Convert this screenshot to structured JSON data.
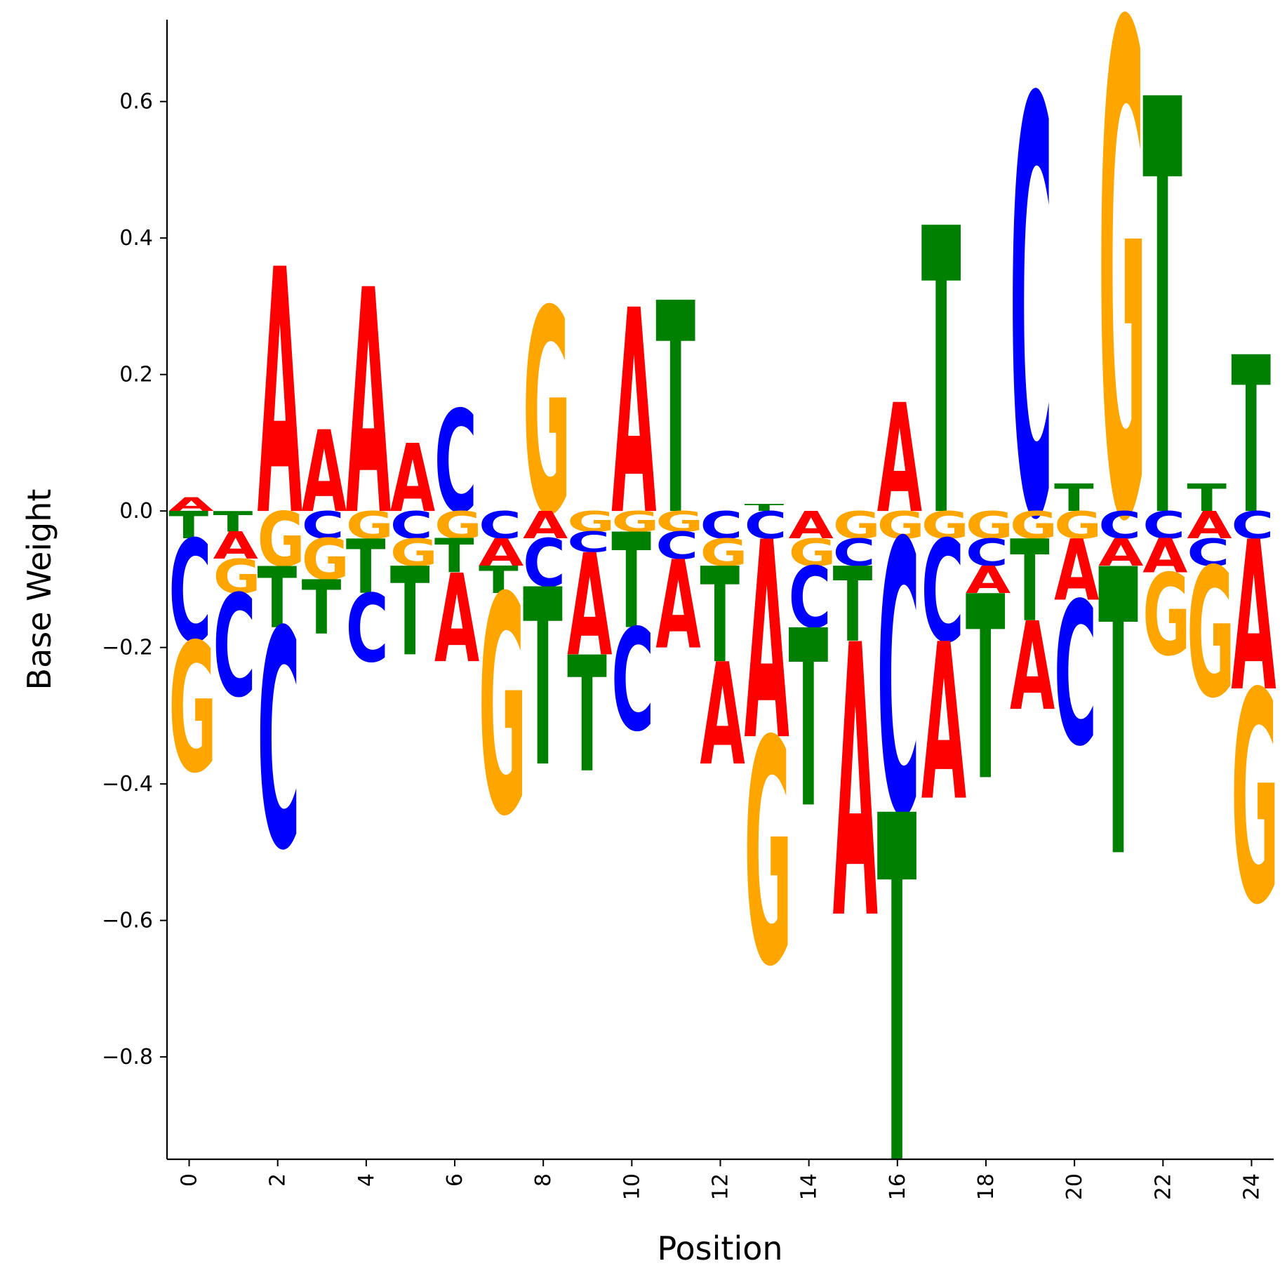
{
  "chart_data": {
    "type": "sequence-logo",
    "xlabel": "Position",
    "ylabel": "Base Weight",
    "xlim": [
      -0.5,
      24.5
    ],
    "ylim": [
      -0.95,
      0.72
    ],
    "x_ticks": [
      "0",
      "2",
      "4",
      "6",
      "8",
      "10",
      "12",
      "14",
      "16",
      "18",
      "20",
      "22",
      "24"
    ],
    "y_ticks": [
      "0.6",
      "0.4",
      "0.2",
      "0.0",
      "−0.2",
      "−0.4",
      "−0.6",
      "−0.8"
    ],
    "y_tick_values": [
      0.6,
      0.4,
      0.2,
      0.0,
      -0.2,
      -0.4,
      -0.6,
      -0.8
    ],
    "colors": {
      "A": "#ff0000",
      "C": "#0000ff",
      "G": "#ffa500",
      "T": "#008000"
    },
    "positions": [
      {
        "pos": 0,
        "weights": {
          "A": 0.02,
          "T": -0.04,
          "C": -0.15,
          "G": -0.19
        }
      },
      {
        "pos": 1,
        "weights": {
          "T": -0.03,
          "G": -0.05,
          "A": -0.04,
          "C": -0.15
        }
      },
      {
        "pos": 2,
        "weights": {
          "A": 0.36,
          "G": -0.08,
          "T": -0.09,
          "C": -0.32
        }
      },
      {
        "pos": 3,
        "weights": {
          "A": 0.12,
          "C": -0.04,
          "G": -0.06,
          "T": -0.08
        }
      },
      {
        "pos": 4,
        "weights": {
          "A": 0.33,
          "G": -0.04,
          "T": -0.08,
          "C": -0.1
        }
      },
      {
        "pos": 5,
        "weights": {
          "A": 0.1,
          "C": -0.04,
          "G": -0.04,
          "T": -0.13
        }
      },
      {
        "pos": 6,
        "weights": {
          "C": 0.15,
          "G": -0.04,
          "T": -0.05,
          "A": -0.13
        }
      },
      {
        "pos": 7,
        "weights": {
          "C": -0.04,
          "A": -0.04,
          "T": -0.04,
          "G": -0.32
        }
      },
      {
        "pos": 8,
        "weights": {
          "G": 0.3,
          "A": -0.04,
          "C": -0.07,
          "T": -0.26
        }
      },
      {
        "pos": 9,
        "weights": {
          "G": -0.03,
          "C": -0.03,
          "A": -0.15,
          "T": -0.17
        }
      },
      {
        "pos": 10,
        "weights": {
          "A": 0.3,
          "G": -0.03,
          "C": -0.15,
          "T": -0.14
        }
      },
      {
        "pos": 11,
        "weights": {
          "T": 0.31,
          "G": -0.03,
          "C": -0.04,
          "A": -0.13
        }
      },
      {
        "pos": 12,
        "weights": {
          "C": -0.04,
          "G": -0.04,
          "T": -0.14,
          "A": -0.15
        }
      },
      {
        "pos": 13,
        "weights": {
          "T": 0.01,
          "C": -0.04,
          "A": -0.29,
          "G": -0.33
        }
      },
      {
        "pos": 14,
        "weights": {
          "A": -0.04,
          "G": -0.04,
          "C": -0.09,
          "T": -0.26
        }
      },
      {
        "pos": 15,
        "weights": {
          "G": -0.04,
          "C": -0.04,
          "T": -0.11,
          "A": -0.4
        }
      },
      {
        "pos": 16,
        "weights": {
          "A": 0.16,
          "G": -0.04,
          "C": -0.4,
          "T": -0.51
        }
      },
      {
        "pos": 17,
        "weights": {
          "T": 0.42,
          "G": -0.04,
          "C": -0.15,
          "A": -0.23
        }
      },
      {
        "pos": 18,
        "weights": {
          "G": -0.04,
          "C": -0.04,
          "A": -0.04,
          "T": -0.27
        }
      },
      {
        "pos": 19,
        "weights": {
          "C": 0.61,
          "G": -0.04,
          "A": -0.13,
          "T": -0.12
        }
      },
      {
        "pos": 20,
        "weights": {
          "T": 0.04,
          "G": -0.04,
          "A": -0.09,
          "C": -0.21
        }
      },
      {
        "pos": 21,
        "weights": {
          "G": 0.72,
          "C": -0.04,
          "A": -0.04,
          "T": -0.42
        }
      },
      {
        "pos": 22,
        "weights": {
          "T": 0.61,
          "C": -0.04,
          "A": -0.05,
          "G": -0.12
        }
      },
      {
        "pos": 23,
        "weights": {
          "T": 0.04,
          "A": -0.04,
          "C": -0.04,
          "G": -0.19
        }
      },
      {
        "pos": 24,
        "weights": {
          "T": 0.23,
          "C": -0.04,
          "A": -0.22,
          "G": -0.31
        }
      }
    ]
  }
}
